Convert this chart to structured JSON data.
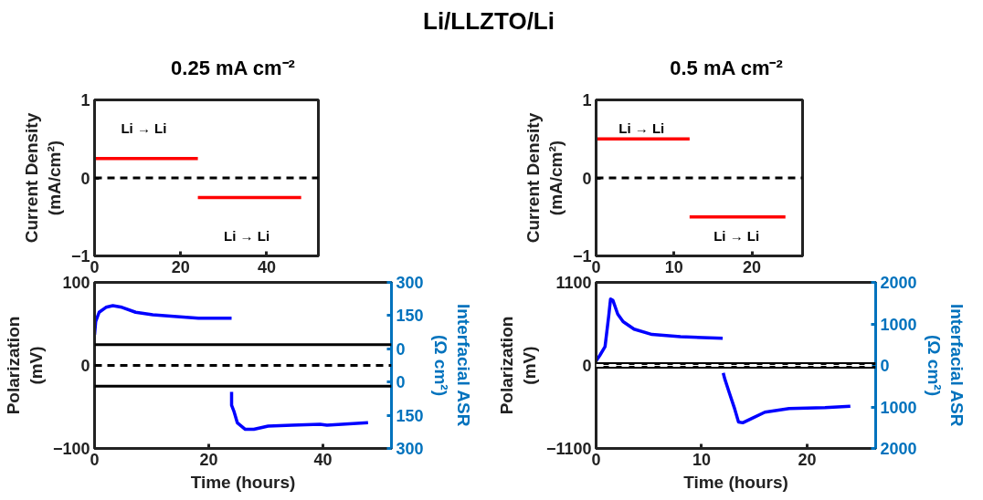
{
  "chart_data": [
    {
      "type": "other",
      "title": "Li/LLZTO/Li"
    },
    {
      "type": "line",
      "subtitle": "0.25 mA cm⁻²",
      "ylabel": "Current Density\n(mA/cm²)",
      "xlim": [
        0,
        52
      ],
      "xticks": [
        0,
        20,
        40
      ],
      "ylim": [
        -1,
        1
      ],
      "yticks": [
        -1,
        0,
        1
      ],
      "marker": "none",
      "line_style": "solid",
      "series": [
        {
          "color": "#ff0000",
          "x": [
            0,
            24
          ],
          "values": [
            0.25,
            0.25
          ]
        },
        {
          "color": "#ff0000",
          "x": [
            24,
            48
          ],
          "values": [
            -0.25,
            -0.25
          ]
        }
      ],
      "ref_lines": [
        {
          "axis": "y",
          "value": 0,
          "color": "#000000",
          "line_style": "dashed"
        }
      ],
      "annotations": [
        "Li → Li",
        "Li → Li"
      ]
    },
    {
      "type": "line",
      "subtitle": "0.5 mA cm⁻²",
      "ylabel": "Current Density\n(mA/cm²)",
      "xlim": [
        0,
        26.5
      ],
      "xticks": [
        0,
        10,
        20
      ],
      "ylim": [
        -1,
        1
      ],
      "yticks": [
        -1,
        0,
        1
      ],
      "marker": "none",
      "line_style": "solid",
      "series": [
        {
          "color": "#ff0000",
          "x": [
            0,
            12
          ],
          "values": [
            0.5,
            0.5
          ]
        },
        {
          "color": "#ff0000",
          "x": [
            12,
            24.3
          ],
          "values": [
            -0.5,
            -0.5
          ]
        }
      ],
      "ref_lines": [
        {
          "axis": "y",
          "value": 0,
          "color": "#000000",
          "line_style": "dashed"
        }
      ],
      "annotations": [
        "Li → Li",
        "Li → Li"
      ]
    },
    {
      "type": "line",
      "xlabel": "Time (hours)",
      "ylabel": "Polarization\n(mV)",
      "y2label": "Interfacial ASR\n(Ω cm²)",
      "xlim": [
        0,
        52
      ],
      "xticks": [
        0,
        20,
        40
      ],
      "ylim": [
        -100,
        100
      ],
      "yticks": [
        -100,
        0,
        100
      ],
      "y2_categories": [
        "300",
        "150",
        "0",
        "0",
        "150",
        "300"
      ],
      "marker": "none",
      "line_style": "solid",
      "series": [
        {
          "color": "#0000ff",
          "x": [
            0,
            0.2,
            0.8,
            2,
            3.2,
            4.8,
            7.2,
            10.2,
            13.9,
            18.2,
            24
          ],
          "values": [
            37,
            53,
            64,
            70,
            72,
            70,
            64,
            61,
            59,
            57,
            57
          ]
        },
        {
          "color": "#0000ff",
          "x": [
            24,
            24,
            24.4,
            25,
            26.4,
            27.9,
            30.4,
            34.6,
            39.5,
            40.7,
            47.9
          ],
          "values": [
            -32,
            -48,
            -55,
            -69,
            -77,
            -77,
            -73,
            -72,
            -71,
            -72,
            -69
          ]
        }
      ],
      "ref_lines": [
        {
          "axis": "y",
          "value": 25,
          "color": "#000000",
          "line_style": "solid"
        },
        {
          "axis": "y",
          "value": -25,
          "color": "#000000",
          "line_style": "solid"
        },
        {
          "axis": "y",
          "value": 0,
          "color": "#000000",
          "line_style": "dashed"
        }
      ]
    },
    {
      "type": "line",
      "xlabel": "Time (hours)",
      "ylabel": "Polarization\n(mV)",
      "y2label": "Interfacial ASR\n(Ω cm²)",
      "xlim": [
        0,
        26.5
      ],
      "xticks": [
        0,
        10,
        20
      ],
      "ylim": [
        -1100,
        1100
      ],
      "yticks": [
        -1100,
        0,
        1100
      ],
      "y2_categories": [
        "2000",
        "1000",
        "0",
        "1000",
        "2000"
      ],
      "marker": "none",
      "line_style": "solid",
      "series": [
        {
          "color": "#0000ff",
          "x": [
            0,
            0.34,
            0.85,
            1.2,
            1.37,
            1.6,
            2.05,
            2.56,
            3.6,
            5.3,
            8,
            12
          ],
          "values": [
            60,
            130,
            250,
            660,
            880,
            860,
            680,
            580,
            480,
            410,
            380,
            360
          ]
        },
        {
          "color": "#0000ff",
          "x": [
            12.05,
            12.2,
            12.6,
            13.1,
            13.5,
            13.9,
            14.8,
            16,
            18.3,
            21.7,
            24.1
          ],
          "values": [
            -100,
            -180,
            -350,
            -560,
            -750,
            -760,
            -700,
            -620,
            -570,
            -560,
            -540
          ]
        }
      ],
      "ref_lines": [
        {
          "axis": "y",
          "value": 25,
          "color": "#000000",
          "line_style": "solid"
        },
        {
          "axis": "y",
          "value": -25,
          "color": "#000000",
          "line_style": "solid"
        },
        {
          "axis": "y",
          "value": 0,
          "color": "#ffffff",
          "line_style": "dashed"
        }
      ]
    }
  ]
}
